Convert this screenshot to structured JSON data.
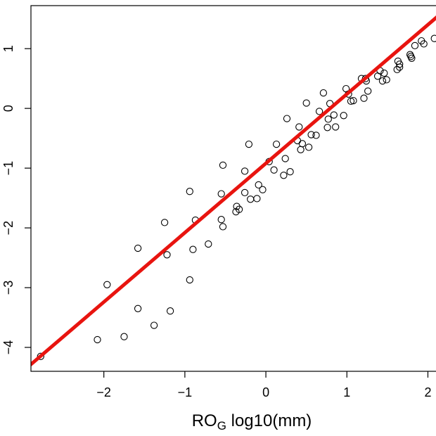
{
  "chart_data": {
    "type": "scatter",
    "xlabel": {
      "main": "RO",
      "subscript": "G",
      "suffix": " log10(mm)"
    },
    "ylabel": "",
    "xlim": [
      -2.9,
      2.1
    ],
    "ylim": [
      -4.4,
      1.72
    ],
    "x_ticks": [
      -2,
      -1,
      0,
      1,
      2
    ],
    "x_tick_labels": [
      "−2",
      "−1",
      "0",
      "1",
      "2"
    ],
    "y_ticks": [
      -4,
      -3,
      -2,
      -1,
      0,
      1
    ],
    "y_tick_labels": [
      "−4",
      "−3",
      "−2",
      "−1",
      "0",
      "1"
    ],
    "grid": false,
    "point_style": "open-circle",
    "point_color": "#000000",
    "fit_line": {
      "slope": 1.16,
      "intercept": -0.92,
      "color": "#e8140f"
    },
    "points": [
      [
        -2.78,
        -4.15
      ],
      [
        -2.08,
        -3.87
      ],
      [
        -1.96,
        -2.95
      ],
      [
        -1.75,
        -3.82
      ],
      [
        -1.58,
        -2.34
      ],
      [
        -1.58,
        -3.35
      ],
      [
        -1.38,
        -3.63
      ],
      [
        -1.25,
        -1.91
      ],
      [
        -1.22,
        -2.45
      ],
      [
        -1.18,
        -3.39
      ],
      [
        -0.94,
        -1.39
      ],
      [
        -0.94,
        -2.87
      ],
      [
        -0.9,
        -2.36
      ],
      [
        -0.87,
        -1.87
      ],
      [
        -0.71,
        -2.27
      ],
      [
        -0.55,
        -1.43
      ],
      [
        -0.55,
        -1.86
      ],
      [
        -0.53,
        -0.95
      ],
      [
        -0.53,
        -1.98
      ],
      [
        -0.37,
        -1.73
      ],
      [
        -0.36,
        -1.64
      ],
      [
        -0.33,
        -1.69
      ],
      [
        -0.26,
        -1.05
      ],
      [
        -0.26,
        -1.41
      ],
      [
        -0.21,
        -0.6
      ],
      [
        -0.19,
        -1.52
      ],
      [
        -0.11,
        -1.51
      ],
      [
        -0.09,
        -1.28
      ],
      [
        -0.04,
        -1.36
      ],
      [
        0.04,
        -0.89
      ],
      [
        0.1,
        -1.03
      ],
      [
        0.13,
        -0.6
      ],
      [
        0.22,
        -1.12
      ],
      [
        0.24,
        -0.84
      ],
      [
        0.26,
        -0.17
      ],
      [
        0.3,
        -1.06
      ],
      [
        0.39,
        -0.54
      ],
      [
        0.41,
        -0.31
      ],
      [
        0.43,
        -0.69
      ],
      [
        0.45,
        -0.59
      ],
      [
        0.5,
        0.09
      ],
      [
        0.53,
        -0.65
      ],
      [
        0.56,
        -0.44
      ],
      [
        0.62,
        -0.45
      ],
      [
        0.66,
        -0.05
      ],
      [
        0.71,
        0.26
      ],
      [
        0.76,
        -0.32
      ],
      [
        0.77,
        -0.18
      ],
      [
        0.79,
        0.08
      ],
      [
        0.84,
        -0.11
      ],
      [
        0.86,
        -0.31
      ],
      [
        0.96,
        -0.12
      ],
      [
        0.99,
        0.33
      ],
      [
        1.02,
        0.24
      ],
      [
        1.05,
        0.12
      ],
      [
        1.08,
        0.13
      ],
      [
        1.18,
        0.5
      ],
      [
        1.21,
        0.17
      ],
      [
        1.23,
        0.5
      ],
      [
        1.24,
        0.46
      ],
      [
        1.26,
        0.29
      ],
      [
        1.38,
        0.54
      ],
      [
        1.41,
        0.63
      ],
      [
        1.44,
        0.46
      ],
      [
        1.46,
        0.59
      ],
      [
        1.49,
        0.48
      ],
      [
        1.62,
        0.65
      ],
      [
        1.63,
        0.79
      ],
      [
        1.65,
        0.69
      ],
      [
        1.65,
        0.74
      ],
      [
        1.78,
        0.9
      ],
      [
        1.79,
        0.87
      ],
      [
        1.8,
        0.84
      ],
      [
        1.84,
        1.05
      ],
      [
        1.92,
        1.13
      ],
      [
        1.95,
        1.08
      ],
      [
        2.08,
        1.17
      ]
    ]
  }
}
